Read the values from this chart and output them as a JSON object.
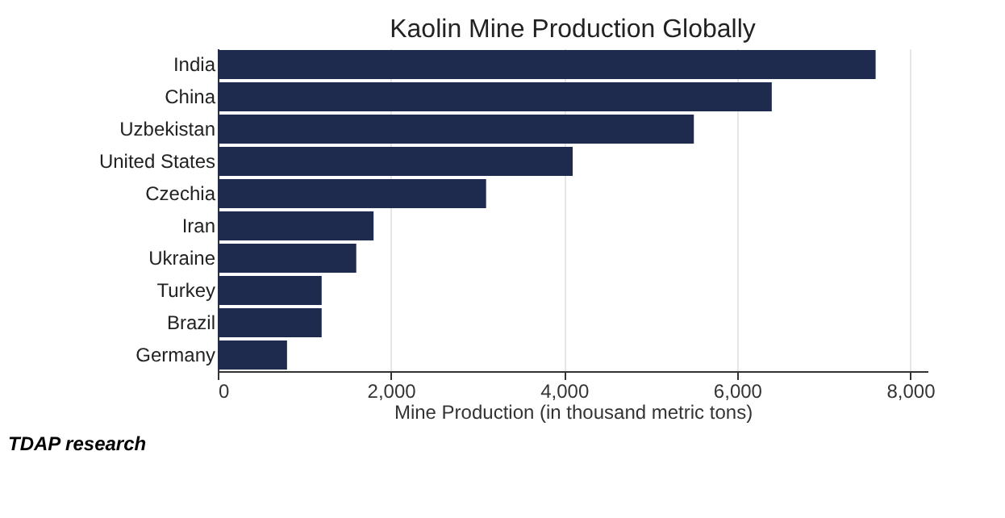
{
  "chart_data": {
    "type": "bar",
    "orientation": "horizontal",
    "title": "Kaolin Mine Production Globally",
    "xlabel": "Mine Production (in thousand metric tons)",
    "categories": [
      "India",
      "China",
      "Uzbekistan",
      "United States",
      "Czechia",
      "Iran",
      "Ukraine",
      "Turkey",
      "Brazil",
      "Germany"
    ],
    "values": [
      7600,
      6400,
      5500,
      4100,
      3100,
      1800,
      1600,
      1200,
      1200,
      800
    ],
    "color": "#1f2a4f",
    "xlim": [
      0,
      8200
    ],
    "xticks": [
      {
        "value": 0,
        "label": "0"
      },
      {
        "value": 2000,
        "label": "2,000"
      },
      {
        "value": 4000,
        "label": "4,000"
      },
      {
        "value": 6000,
        "label": "6,000"
      },
      {
        "value": 8000,
        "label": "8,000"
      }
    ],
    "grid": "x",
    "annotations": [
      "TDAP research"
    ]
  }
}
